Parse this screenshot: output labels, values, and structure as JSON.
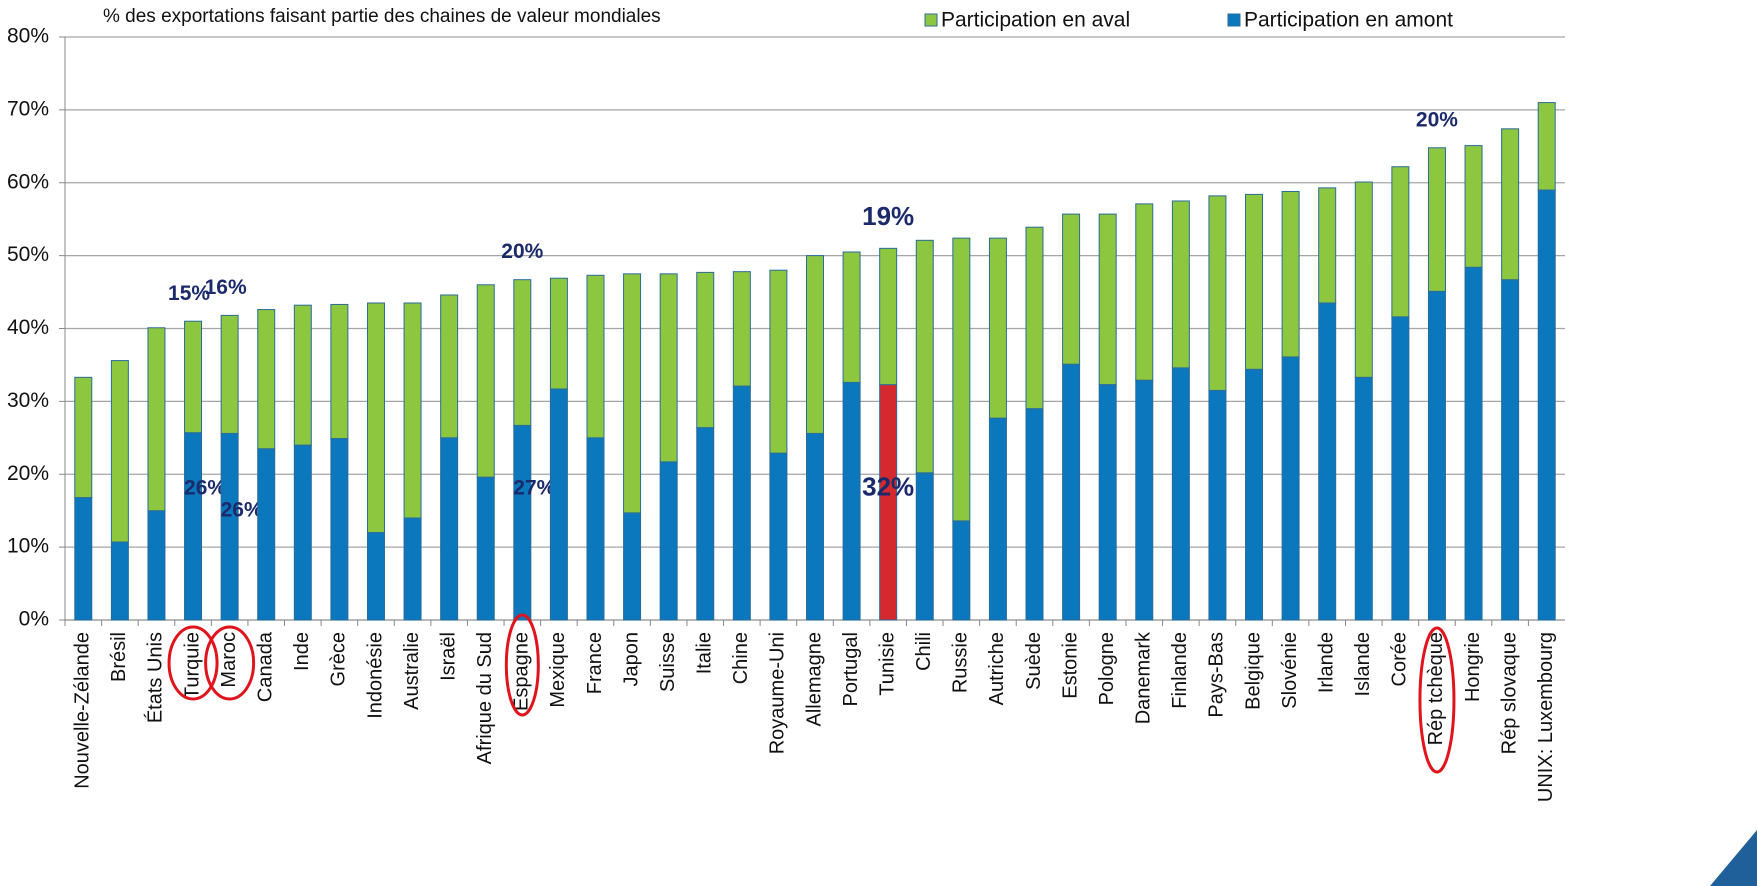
{
  "chart_data": {
    "type": "stacked_bar",
    "title": "% des exportations faisant partie des chaines de valeur mondiales",
    "categories": [
      "Nouvelle-Zélande",
      "Brésil",
      "États Unis",
      "Turquie",
      "Maroc",
      "Canada",
      "Inde",
      "Grèce",
      "Indonésie",
      "Australie",
      "Israël",
      "Afrique du Sud",
      "Espagne",
      "Mexique",
      "France",
      "Japon",
      "Suisse",
      "Italie",
      "Chine",
      "Royaume-Uni",
      "Allemagne",
      "Portugal",
      "Tunisie",
      "Chili",
      "Russie",
      "Autriche",
      "Suède",
      "Estonie",
      "Pologne",
      "Danemark",
      "Finlande",
      "Pays-Bas",
      "Belgique",
      "Slovénie",
      "Irlande",
      "Islande",
      "Corée",
      "Rép tchèque",
      "Hongrie",
      "Rép slovaque",
      "UNIX: Luxembourg"
    ],
    "series": [
      {
        "name": "Participation en amont",
        "color": "#0b77bd",
        "values": [
          16.8,
          10.7,
          15.0,
          25.7,
          25.6,
          23.5,
          24.0,
          24.9,
          12.0,
          14.0,
          25.0,
          19.6,
          26.7,
          31.7,
          25.0,
          14.7,
          21.7,
          26.4,
          32.1,
          22.9,
          25.6,
          32.6,
          32.3,
          20.2,
          13.6,
          27.7,
          29.0,
          35.1,
          32.3,
          32.9,
          34.6,
          31.5,
          34.4,
          36.1,
          43.5,
          33.3,
          41.6,
          45.1,
          48.4,
          46.7,
          59.0
        ],
        "value_labels": [
          null,
          null,
          null,
          "26%",
          "26%",
          null,
          null,
          null,
          null,
          null,
          null,
          null,
          "27%",
          null,
          null,
          null,
          null,
          null,
          null,
          null,
          null,
          null,
          "32%",
          null,
          null,
          null,
          null,
          null,
          null,
          null,
          null,
          null,
          null,
          null,
          null,
          null,
          null,
          null,
          null,
          null,
          null
        ]
      },
      {
        "name": "Participation en aval",
        "color": "#8dc63f",
        "values": [
          16.5,
          24.9,
          25.1,
          15.3,
          16.2,
          19.1,
          19.2,
          18.4,
          31.5,
          29.5,
          19.6,
          26.4,
          20.0,
          15.2,
          22.3,
          32.8,
          25.8,
          21.3,
          15.7,
          25.1,
          24.4,
          17.9,
          18.7,
          31.9,
          38.8,
          24.7,
          24.9,
          20.6,
          23.4,
          24.2,
          22.9,
          26.7,
          24.0,
          22.7,
          15.8,
          26.8,
          20.6,
          19.7,
          16.7,
          20.7,
          12.0
        ],
        "value_labels": [
          null,
          null,
          null,
          "15%",
          "16%",
          null,
          null,
          null,
          null,
          null,
          null,
          null,
          "20%",
          null,
          null,
          null,
          null,
          null,
          null,
          null,
          null,
          null,
          "19%",
          null,
          null,
          null,
          null,
          null,
          null,
          null,
          null,
          null,
          null,
          null,
          null,
          null,
          null,
          "20%",
          null,
          null,
          null
        ]
      }
    ],
    "highlight": {
      "index": 22,
      "color": "#d42a2f"
    },
    "ylim": [
      0,
      80
    ],
    "yticks": [
      {
        "value": 0,
        "label": "0%"
      },
      {
        "value": 10,
        "label": "10%"
      },
      {
        "value": 20,
        "label": "20%"
      },
      {
        "value": 30,
        "label": "30%"
      },
      {
        "value": 40,
        "label": "40%"
      },
      {
        "value": 50,
        "label": "50%"
      },
      {
        "value": 60,
        "label": "60%"
      },
      {
        "value": 70,
        "label": "70%"
      },
      {
        "value": 80,
        "label": "80%"
      }
    ],
    "grid": true,
    "legend": "top"
  }
}
